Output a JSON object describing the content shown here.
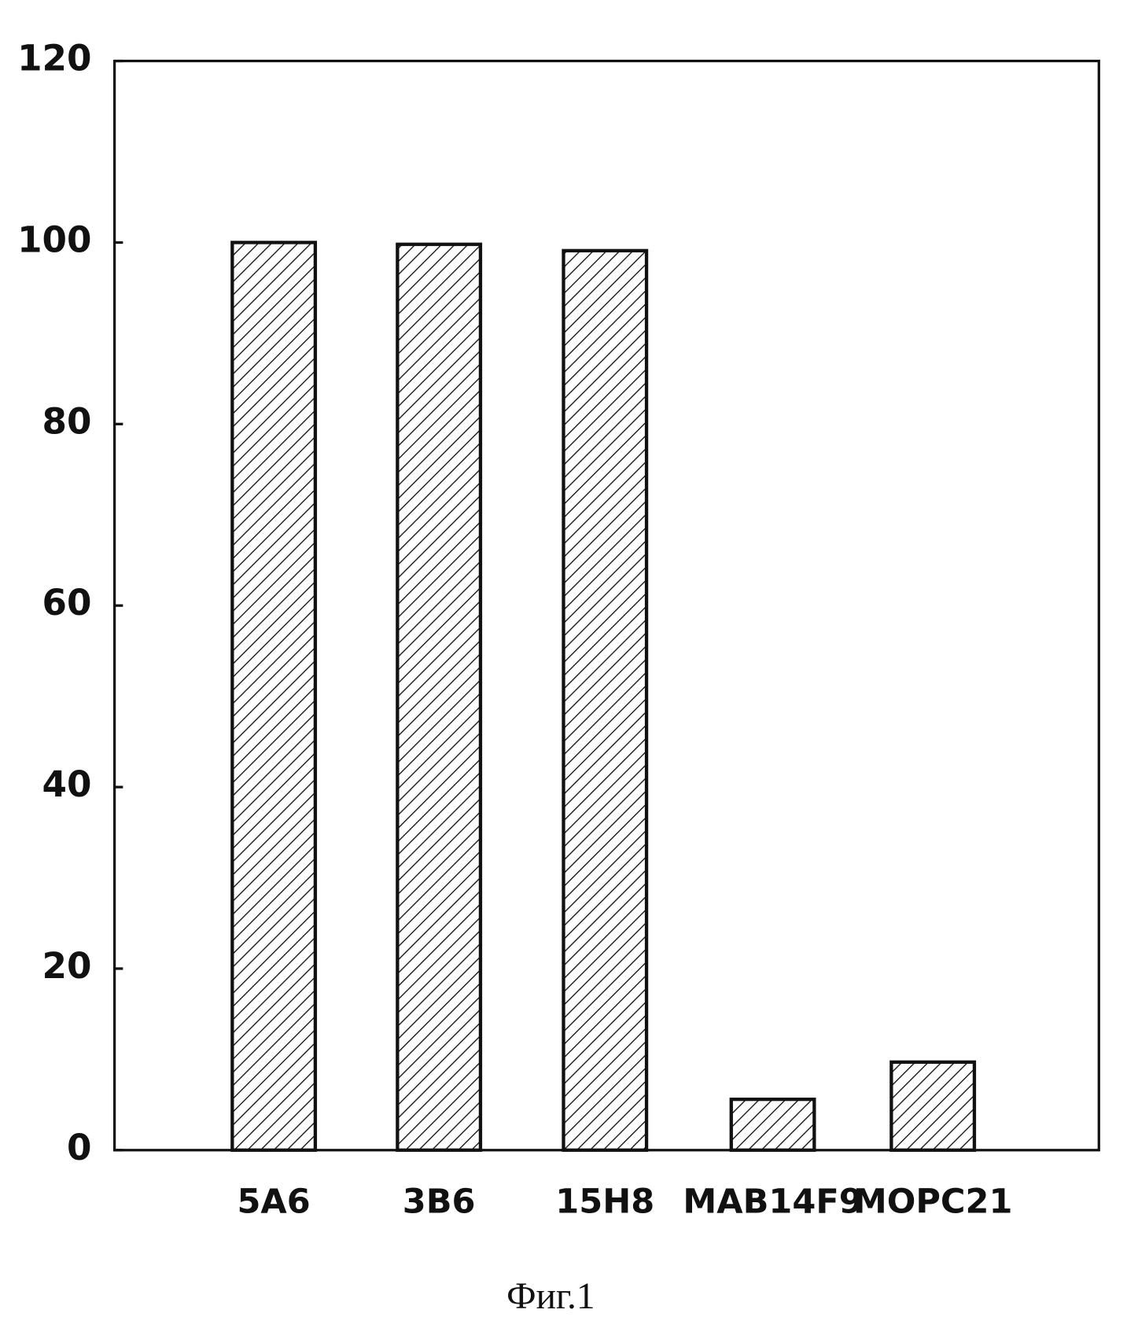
{
  "chart_data": {
    "type": "bar",
    "caption": "Фиг.1",
    "categories": [
      "5A6",
      "3B6",
      "15H8",
      "MAB14F9",
      "MOPC21"
    ],
    "values": [
      100,
      99.8,
      99.1,
      5.6,
      9.7
    ],
    "color": "#111111",
    "hatch": true,
    "ylim": [
      0,
      120
    ],
    "yticks": [
      0,
      20,
      40,
      60,
      80,
      100,
      120
    ]
  }
}
